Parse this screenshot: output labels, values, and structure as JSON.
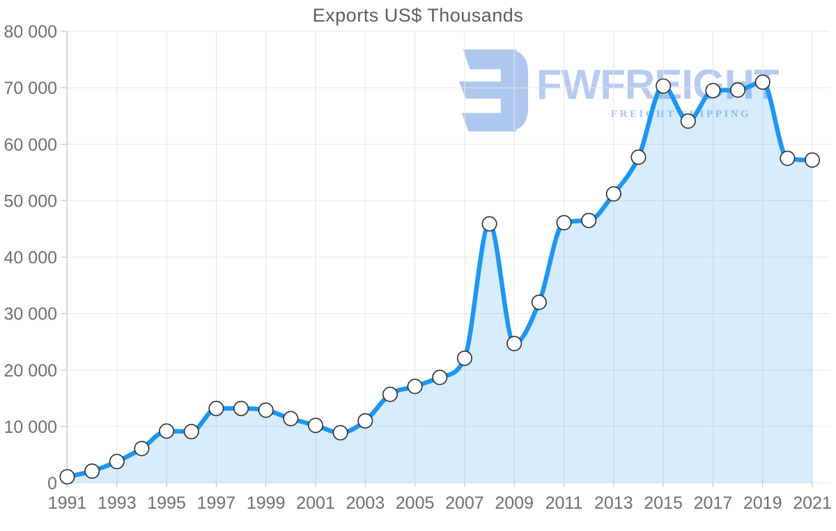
{
  "watermark": {
    "brand": "FWFREIGHT",
    "tagline": "FREIGHT SHIPPING",
    "logo_color": "#aec7ee",
    "brand_color": "#b7cbf1",
    "tagline_color": "#a9c2ea"
  },
  "chart_data": {
    "type": "line",
    "title": "Exports US$ Thousands",
    "xlabel": "",
    "ylabel": "",
    "x": [
      1991,
      1992,
      1993,
      1994,
      1995,
      1996,
      1997,
      1998,
      1999,
      2000,
      2001,
      2002,
      2003,
      2004,
      2005,
      2006,
      2007,
      2008,
      2009,
      2010,
      2011,
      2012,
      2013,
      2014,
      2015,
      2016,
      2017,
      2018,
      2019,
      2020,
      2021
    ],
    "series": [
      {
        "name": "Exports US$ Thousands",
        "values": [
          1100,
          2100,
          3800,
          6100,
          9200,
          9100,
          13200,
          13200,
          12900,
          11400,
          10200,
          8900,
          11000,
          15700,
          17100,
          18700,
          22100,
          45900,
          24700,
          32000,
          46100,
          46500,
          51200,
          57700,
          70300,
          64100,
          69500,
          69600,
          71000,
          57500,
          57200
        ]
      }
    ],
    "ylim": [
      0,
      80000
    ],
    "y_ticks": [
      0,
      10000,
      20000,
      30000,
      40000,
      50000,
      60000,
      70000,
      80000
    ],
    "y_tick_labels": [
      "0",
      "10 000",
      "20 000",
      "30 000",
      "40 000",
      "50 000",
      "60 000",
      "70 000",
      "80 000"
    ],
    "x_tick_labels": [
      "1991",
      "1993",
      "1995",
      "1997",
      "1999",
      "2001",
      "2003",
      "2005",
      "2007",
      "2009",
      "2011",
      "2013",
      "2015",
      "2017",
      "2019",
      "2021"
    ],
    "grid": true,
    "legend_position": "none",
    "marker": "open-circle",
    "area_fill": true,
    "colors": {
      "line": "#1e96f3",
      "area": "rgba(33,150,243,0.18)",
      "grid": "#e6e6e6",
      "axis": "#bdbdbd",
      "tick_label": "#6f6f6f",
      "title": "#5d5d5d",
      "marker_fill": "#ffffff",
      "marker_stroke": "#2b2b2b"
    }
  }
}
